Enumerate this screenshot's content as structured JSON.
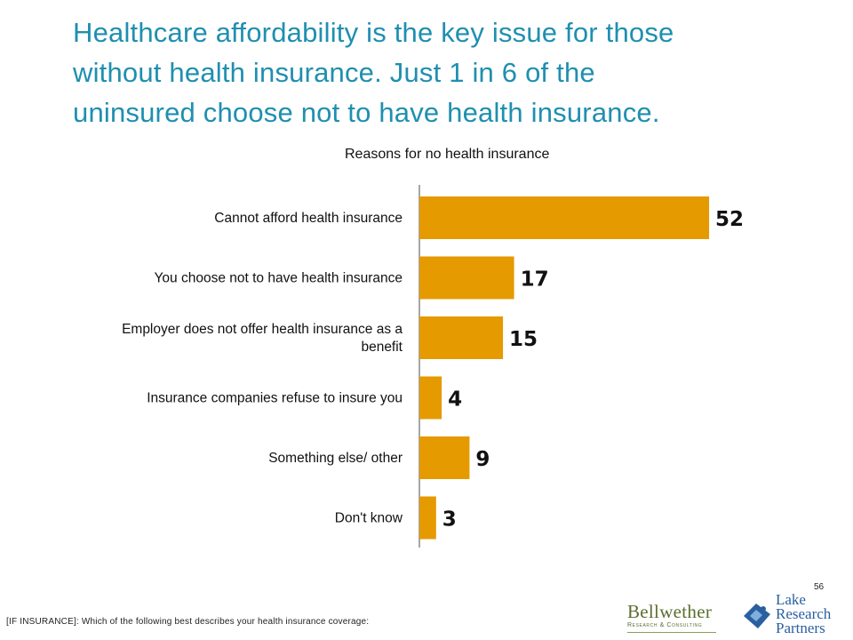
{
  "slide": {
    "title_lines": [
      "Healthcare affordability is the key issue for those",
      "without health insurance. Just 1 in 6 of the",
      "uninsured choose not to have health insurance."
    ],
    "page_number": "56",
    "footnote": "[IF INSURANCE]:  Which of the following best describes your health insurance coverage:"
  },
  "logos": {
    "bellwether": {
      "name": "Bellwether",
      "sub": "Research & Consulting"
    },
    "lake": {
      "line1": "Lake",
      "line2": "Research",
      "line3": "Partners"
    }
  },
  "colors": {
    "title": "#1f8fb0",
    "bar": "#e59a00",
    "axis": "#888888",
    "label": "#111111"
  },
  "chart_data": {
    "type": "bar",
    "orientation": "horizontal",
    "title": "Reasons for no health insurance",
    "categories": [
      [
        "Cannot afford health insurance"
      ],
      [
        "You choose not to have health insurance"
      ],
      [
        "Employer does not offer health insurance as a",
        "benefit"
      ],
      [
        "Insurance companies refuse to insure you"
      ],
      [
        "Something else/ other"
      ],
      [
        "Don't know"
      ]
    ],
    "values": [
      52,
      17,
      15,
      4,
      9,
      3
    ],
    "data_labels": [
      "52",
      "17",
      "15",
      "4",
      "9",
      "3"
    ],
    "xlim": [
      0,
      60
    ],
    "grid": false,
    "legend": "none"
  }
}
